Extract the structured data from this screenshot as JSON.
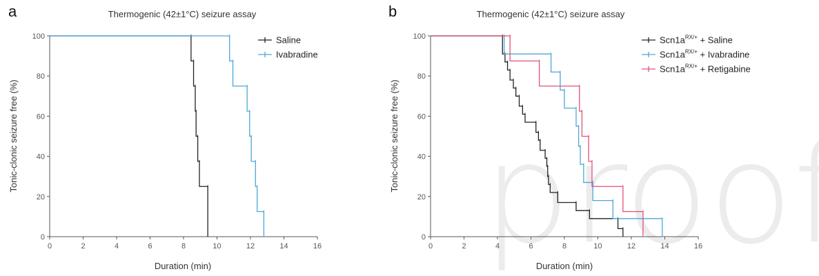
{
  "watermark": "proof",
  "chart_data": [
    {
      "type": "line",
      "panel": "a",
      "title": "Thermogenic (42±1°C) seizure assay",
      "xlabel": "Duration (min)",
      "ylabel": "Tonic-clonic seizure free (%)",
      "xlim": [
        0,
        16
      ],
      "ylim": [
        0,
        100
      ],
      "xticks": [
        0,
        2,
        4,
        6,
        8,
        10,
        12,
        14,
        16
      ],
      "yticks": [
        0,
        20,
        40,
        60,
        80,
        100
      ],
      "legend": "top-right",
      "step": true,
      "series": [
        {
          "name": "Saline",
          "color": "#222222",
          "points": [
            [
              0,
              100
            ],
            [
              8.45,
              100
            ],
            [
              8.45,
              87.5
            ],
            [
              8.6,
              87.5
            ],
            [
              8.6,
              75
            ],
            [
              8.7,
              75
            ],
            [
              8.7,
              62.5
            ],
            [
              8.75,
              62.5
            ],
            [
              8.75,
              50
            ],
            [
              8.85,
              50
            ],
            [
              8.85,
              37.5
            ],
            [
              8.95,
              37.5
            ],
            [
              8.95,
              25
            ],
            [
              9.45,
              25
            ],
            [
              9.45,
              0
            ]
          ]
        },
        {
          "name": "Ivabradine",
          "color": "#4da6d8",
          "points": [
            [
              0,
              100
            ],
            [
              10.75,
              100
            ],
            [
              10.75,
              87.5
            ],
            [
              10.95,
              87.5
            ],
            [
              10.95,
              75
            ],
            [
              11.8,
              75
            ],
            [
              11.8,
              62.5
            ],
            [
              11.95,
              62.5
            ],
            [
              11.95,
              50
            ],
            [
              12.05,
              50
            ],
            [
              12.05,
              37.5
            ],
            [
              12.3,
              37.5
            ],
            [
              12.3,
              25
            ],
            [
              12.4,
              25
            ],
            [
              12.4,
              12.5
            ],
            [
              12.8,
              12.5
            ],
            [
              12.8,
              0
            ]
          ]
        }
      ]
    },
    {
      "type": "line",
      "panel": "b",
      "title": "Thermogenic (42±1°C) seizure assay",
      "xlabel": "Duration (min)",
      "ylabel": "Tonic-clonic seizure free (%)",
      "xlim": [
        0,
        16
      ],
      "ylim": [
        0,
        100
      ],
      "xticks": [
        0,
        2,
        4,
        6,
        8,
        10,
        12,
        14,
        16
      ],
      "yticks": [
        0,
        20,
        40,
        60,
        80,
        100
      ],
      "legend": "top-right",
      "step": true,
      "series": [
        {
          "name": "Scn1a",
          "name_sup": "RX/+",
          "name_suffix": " + Saline",
          "color": "#222222",
          "points": [
            [
              0,
              100
            ],
            [
              4.3,
              100
            ],
            [
              4.3,
              91
            ],
            [
              4.45,
              91
            ],
            [
              4.45,
              87
            ],
            [
              4.6,
              87
            ],
            [
              4.6,
              83
            ],
            [
              4.75,
              83
            ],
            [
              4.75,
              78
            ],
            [
              4.95,
              78
            ],
            [
              4.95,
              74
            ],
            [
              5.1,
              74
            ],
            [
              5.1,
              70
            ],
            [
              5.3,
              70
            ],
            [
              5.3,
              65
            ],
            [
              5.5,
              65
            ],
            [
              5.5,
              61
            ],
            [
              5.65,
              61
            ],
            [
              5.65,
              57
            ],
            [
              6.3,
              57
            ],
            [
              6.3,
              52
            ],
            [
              6.45,
              52
            ],
            [
              6.45,
              48
            ],
            [
              6.55,
              48
            ],
            [
              6.55,
              43
            ],
            [
              6.85,
              43
            ],
            [
              6.85,
              39
            ],
            [
              6.95,
              39
            ],
            [
              6.95,
              35
            ],
            [
              7.0,
              35
            ],
            [
              7.0,
              30
            ],
            [
              7.05,
              30
            ],
            [
              7.05,
              26
            ],
            [
              7.15,
              26
            ],
            [
              7.15,
              22
            ],
            [
              7.6,
              22
            ],
            [
              7.6,
              17
            ],
            [
              8.7,
              17
            ],
            [
              8.7,
              13
            ],
            [
              9.5,
              13
            ],
            [
              9.5,
              9
            ],
            [
              11.2,
              9
            ],
            [
              11.2,
              4
            ],
            [
              11.5,
              4
            ],
            [
              11.5,
              0
            ]
          ]
        },
        {
          "name": "Scn1a",
          "name_sup": "RX/+",
          "name_suffix": " + Ivabradine",
          "color": "#4da6d8",
          "points": [
            [
              0,
              100
            ],
            [
              4.4,
              100
            ],
            [
              4.4,
              91
            ],
            [
              7.2,
              91
            ],
            [
              7.2,
              82
            ],
            [
              7.75,
              82
            ],
            [
              7.75,
              73
            ],
            [
              8.0,
              73
            ],
            [
              8.0,
              64
            ],
            [
              8.7,
              64
            ],
            [
              8.7,
              55
            ],
            [
              8.85,
              55
            ],
            [
              8.85,
              45
            ],
            [
              8.95,
              45
            ],
            [
              8.95,
              36
            ],
            [
              9.15,
              36
            ],
            [
              9.15,
              27
            ],
            [
              9.7,
              27
            ],
            [
              9.7,
              18
            ],
            [
              10.9,
              18
            ],
            [
              10.9,
              9
            ],
            [
              13.85,
              9
            ],
            [
              13.85,
              0
            ]
          ]
        },
        {
          "name": "Scn1a",
          "name_sup": "RX/+",
          "name_suffix": " + Retigabine",
          "color": "#e0507a",
          "points": [
            [
              0,
              100
            ],
            [
              4.75,
              100
            ],
            [
              4.75,
              87.5
            ],
            [
              6.5,
              87.5
            ],
            [
              6.5,
              75
            ],
            [
              8.9,
              75
            ],
            [
              8.9,
              62.5
            ],
            [
              9.05,
              62.5
            ],
            [
              9.05,
              50
            ],
            [
              9.45,
              50
            ],
            [
              9.45,
              37.5
            ],
            [
              9.65,
              37.5
            ],
            [
              9.65,
              25
            ],
            [
              11.5,
              25
            ],
            [
              11.5,
              12.5
            ],
            [
              12.7,
              12.5
            ],
            [
              12.7,
              0
            ]
          ]
        }
      ]
    }
  ]
}
